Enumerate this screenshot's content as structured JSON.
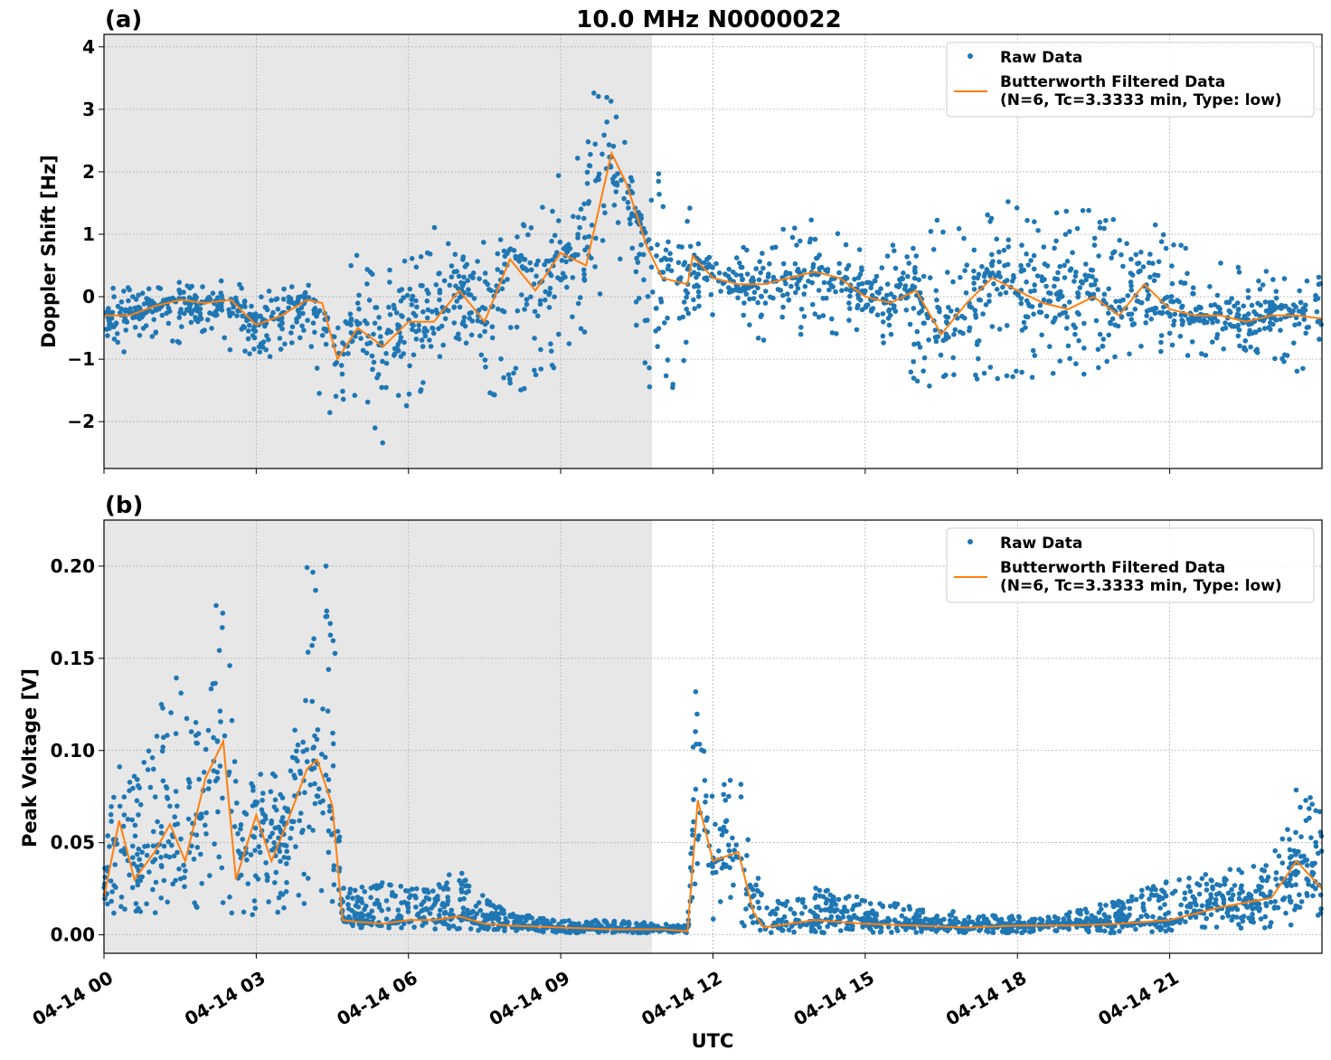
{
  "figure": {
    "suptitle": "10.0 MHz N0000022",
    "xlabel": "UTC",
    "colors": {
      "raw": "#1f77b4",
      "filtered": "#ff7f0e",
      "night_shade": "#d3d3d3",
      "grid": "#b0b0b0"
    }
  },
  "chart_data": [
    {
      "type": "scatter",
      "panel_label": "(a)",
      "title": "10.0 MHz N0000022",
      "xlabel": "",
      "ylabel": "Doppler Shift [Hz]",
      "xlim_hours": [
        0,
        24
      ],
      "ylim": [
        -2.75,
        4.2
      ],
      "yticks": [
        4,
        3,
        2,
        1,
        0,
        -1,
        -2
      ],
      "ytick_labels": [
        "4",
        "3",
        "2",
        "1",
        "0",
        "−1",
        "−2"
      ],
      "xticks_hours": [
        0,
        3,
        6,
        9,
        12,
        15,
        18,
        21
      ],
      "grid": true,
      "legend_position": "top-right",
      "night_shade_hours": [
        0,
        10.8
      ],
      "series": [
        {
          "name": "Raw Data",
          "kind": "scatter",
          "envelope": {
            "x_hours": [
              0,
              0.5,
              1.0,
              1.5,
              2.0,
              2.5,
              3.0,
              3.5,
              4.0,
              4.3,
              4.6,
              5.0,
              5.5,
              6.0,
              6.5,
              7.0,
              7.5,
              8.0,
              8.5,
              9.0,
              9.5,
              10.0,
              10.3,
              10.7,
              11.0,
              11.5,
              11.6,
              12.0,
              12.5,
              13.0,
              13.5,
              14.0,
              14.5,
              15.0,
              15.5,
              16.0,
              16.5,
              17.0,
              17.5,
              18.0,
              18.5,
              19.0,
              19.5,
              20.0,
              20.5,
              21.0,
              21.5,
              22.0,
              22.5,
              23.0,
              23.5,
              24.0
            ],
            "upper": [
              0.15,
              0.2,
              0.15,
              0.25,
              0.2,
              0.3,
              0.05,
              0.15,
              0.2,
              0.1,
              0.2,
              0.9,
              0.6,
              0.8,
              1.2,
              0.6,
              1.0,
              1.8,
              1.3,
              2.0,
              3.2,
              3.9,
              3.0,
              1.5,
              2.2,
              2.0,
              0.9,
              0.8,
              0.7,
              1.3,
              1.2,
              1.3,
              1.0,
              0.8,
              0.9,
              1.0,
              1.3,
              1.0,
              1.4,
              1.6,
              1.2,
              1.5,
              1.4,
              1.3,
              1.5,
              1.0,
              0.7,
              0.6,
              0.5,
              0.4,
              0.5,
              0.4
            ],
            "lower": [
              -0.9,
              -0.9,
              -0.7,
              -0.8,
              -0.7,
              -0.9,
              -1.1,
              -0.9,
              -0.6,
              -1.8,
              -2.0,
              -1.6,
              -2.4,
              -1.8,
              -1.3,
              -0.9,
              -1.6,
              -2.0,
              -1.5,
              -1.3,
              -0.7,
              0.3,
              0.2,
              -1.5,
              -1.2,
              -1.9,
              -0.2,
              -0.3,
              -0.2,
              -0.8,
              -0.7,
              -0.6,
              -0.6,
              -0.6,
              -0.9,
              -1.4,
              -1.6,
              -1.4,
              -1.5,
              -1.3,
              -1.4,
              -1.2,
              -1.3,
              -1.2,
              -1.0,
              -1.1,
              -0.9,
              -1.0,
              -0.9,
              -1.0,
              -1.3,
              -1.1
            ]
          }
        },
        {
          "name": "Butterworth Filtered Data\n(N=6, Tc=3.3333 min, Type: low)",
          "kind": "line",
          "x_hours": [
            0,
            0.5,
            1.0,
            1.5,
            2.0,
            2.5,
            3.0,
            3.5,
            4.0,
            4.3,
            4.6,
            5.0,
            5.5,
            6.0,
            6.5,
            7.0,
            7.5,
            8.0,
            8.5,
            9.0,
            9.5,
            10.0,
            10.3,
            10.7,
            11.0,
            11.5,
            11.6,
            12.0,
            12.5,
            13.0,
            13.5,
            14.0,
            14.5,
            15.0,
            15.5,
            16.0,
            16.5,
            17.0,
            17.5,
            18.0,
            18.5,
            19.0,
            19.5,
            20.0,
            20.5,
            21.0,
            21.5,
            22.0,
            22.5,
            23.0,
            23.5,
            24.0
          ],
          "values": [
            -0.3,
            -0.3,
            -0.15,
            -0.05,
            -0.1,
            -0.05,
            -0.45,
            -0.3,
            -0.05,
            -0.1,
            -1.0,
            -0.5,
            -0.8,
            -0.4,
            -0.4,
            0.1,
            -0.4,
            0.6,
            0.1,
            0.7,
            0.5,
            2.3,
            1.8,
            0.8,
            0.3,
            0.2,
            0.65,
            0.3,
            0.2,
            0.2,
            0.3,
            0.4,
            0.3,
            0.0,
            -0.1,
            0.1,
            -0.6,
            -0.1,
            0.3,
            0.1,
            -0.1,
            -0.2,
            0.0,
            -0.3,
            0.2,
            -0.2,
            -0.3,
            -0.3,
            -0.4,
            -0.3,
            -0.3,
            -0.35
          ]
        }
      ]
    },
    {
      "type": "scatter",
      "panel_label": "(b)",
      "title": "",
      "xlabel": "UTC",
      "ylabel": "Peak Voltage [V]",
      "xlim_hours": [
        0,
        24
      ],
      "ylim": [
        -0.01,
        0.225
      ],
      "yticks": [
        0.2,
        0.15,
        0.1,
        0.05,
        0.0
      ],
      "ytick_labels": [
        "0.20",
        "0.15",
        "0.10",
        "0.05",
        "0.00"
      ],
      "xticks_hours": [
        0,
        3,
        6,
        9,
        12,
        15,
        18,
        21
      ],
      "xtick_labels": [
        "04-14 00",
        "04-14 03",
        "04-14 06",
        "04-14 09",
        "04-14 12",
        "04-14 15",
        "04-14 18",
        "04-14 21"
      ],
      "grid": true,
      "legend_position": "top-right",
      "night_shade_hours": [
        0,
        10.8
      ],
      "series": [
        {
          "name": "Raw Data",
          "kind": "scatter",
          "envelope": {
            "x_hours": [
              0,
              0.3,
              0.6,
              1.0,
              1.3,
              1.6,
              2.0,
              2.35,
              2.6,
              3.0,
              3.3,
              3.6,
              4.0,
              4.2,
              4.5,
              4.7,
              5.0,
              5.5,
              6.0,
              6.5,
              7.0,
              7.5,
              8.0,
              9.0,
              10.0,
              11.0,
              11.5,
              11.7,
              12.0,
              12.5,
              12.8,
              13.0,
              14.0,
              15.0,
              16.0,
              17.0,
              18.0,
              19.0,
              20.0,
              21.0,
              22.0,
              23.0,
              23.5,
              24.0
            ],
            "upper": [
              0.05,
              0.1,
              0.09,
              0.11,
              0.155,
              0.14,
              0.13,
              0.215,
              0.09,
              0.105,
              0.09,
              0.08,
              0.21,
              0.21,
              0.2,
              0.03,
              0.025,
              0.03,
              0.025,
              0.025,
              0.04,
              0.02,
              0.012,
              0.008,
              0.008,
              0.006,
              0.005,
              0.185,
              0.09,
              0.1,
              0.05,
              0.015,
              0.027,
              0.02,
              0.015,
              0.012,
              0.01,
              0.012,
              0.02,
              0.03,
              0.035,
              0.04,
              0.088,
              0.065
            ],
            "lower": [
              0.012,
              0.01,
              0.012,
              0.01,
              0.012,
              0.01,
              0.015,
              0.005,
              0.012,
              0.008,
              0.01,
              0.012,
              0.015,
              0.02,
              0.015,
              0.004,
              0.003,
              0.003,
              0.003,
              0.003,
              0.003,
              0.002,
              0.002,
              0.001,
              0.001,
              0.001,
              0.001,
              0.01,
              0.008,
              0.006,
              0.001,
              0.001,
              0.001,
              0.001,
              0.001,
              0.001,
              0.001,
              0.001,
              0.001,
              0.002,
              0.003,
              0.003,
              0.004,
              0.004
            ]
          }
        },
        {
          "name": "Butterworth Filtered Data\n(N=6, Tc=3.3333 min, Type: low)",
          "kind": "line",
          "x_hours": [
            0,
            0.3,
            0.6,
            1.0,
            1.3,
            1.6,
            2.0,
            2.35,
            2.6,
            3.0,
            3.3,
            3.6,
            4.0,
            4.2,
            4.5,
            4.7,
            5.0,
            5.5,
            6.0,
            6.5,
            7.0,
            7.5,
            8.0,
            9.0,
            10.0,
            11.0,
            11.5,
            11.7,
            12.0,
            12.5,
            12.8,
            13.0,
            14.0,
            15.0,
            16.0,
            17.0,
            18.0,
            19.0,
            20.0,
            21.0,
            22.0,
            23.0,
            23.5,
            24.0
          ],
          "values": [
            0.02,
            0.062,
            0.03,
            0.045,
            0.06,
            0.04,
            0.085,
            0.105,
            0.03,
            0.065,
            0.04,
            0.06,
            0.09,
            0.095,
            0.07,
            0.008,
            0.007,
            0.006,
            0.008,
            0.008,
            0.01,
            0.006,
            0.005,
            0.004,
            0.003,
            0.003,
            0.002,
            0.073,
            0.04,
            0.045,
            0.012,
            0.004,
            0.008,
            0.006,
            0.005,
            0.004,
            0.005,
            0.005,
            0.006,
            0.008,
            0.015,
            0.02,
            0.04,
            0.025
          ]
        }
      ]
    }
  ]
}
